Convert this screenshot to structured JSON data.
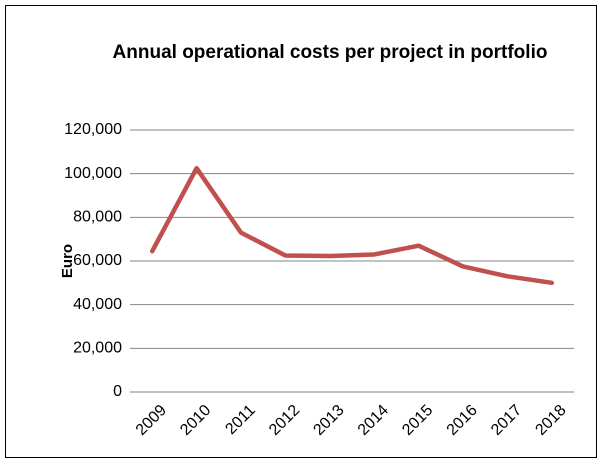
{
  "chart_data": {
    "type": "line",
    "title": "Annual operational costs per project in portfolio",
    "y_label": "Euro",
    "categories": [
      "2009",
      "2010",
      "2011",
      "2012",
      "2013",
      "2014",
      "2015",
      "2016",
      "2017",
      "2018"
    ],
    "series": [
      {
        "name": "Euro",
        "color": "#c0504d",
        "values": [
          64500,
          102500,
          73000,
          62500,
          62300,
          63000,
          67000,
          57500,
          53000,
          50000
        ]
      }
    ],
    "ylim": [
      0,
      120000
    ],
    "yticks": [
      0,
      {
        "value": 20000,
        "label": "20,000"
      },
      {
        "value": 40000,
        "label": "40,000"
      },
      {
        "value": 60000,
        "label": "60,000"
      },
      {
        "value": 80000,
        "label": "80,000"
      },
      {
        "value": 100000,
        "label": "100,000"
      },
      {
        "value": 120000,
        "label": "120,000"
      }
    ],
    "grid": true,
    "legend": false
  }
}
